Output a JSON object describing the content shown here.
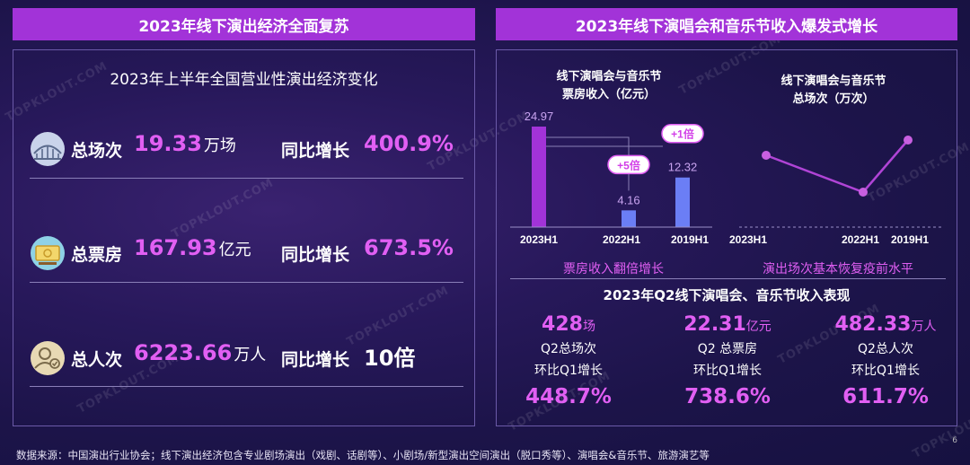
{
  "left_banner": "2023年线下演出经济全面复苏",
  "right_banner": "2023年线下演唱会和音乐节收入爆发式增长",
  "left_panel": {
    "subtitle": "2023年上半年全国营业性演出经济变化",
    "stats": [
      {
        "icon": "venue-icon",
        "label": "总场次",
        "value": "19.33",
        "unit": "万场",
        "yoy_label": "同比增长",
        "yoy_value": "400.9%"
      },
      {
        "icon": "money-icon",
        "label": "总票房",
        "value": "167.93",
        "unit": "亿元",
        "yoy_label": "同比增长",
        "yoy_value": "673.5%"
      },
      {
        "icon": "audience-icon",
        "label": "总人次",
        "value": "6223.66",
        "unit": "万人",
        "yoy_label": "同比增长",
        "yoy_value": "10倍"
      }
    ]
  },
  "right_panel": {
    "box_office_chart": {
      "title_line1": "线下演唱会与音乐节",
      "title_line2": "票房收入（亿元）",
      "caption": "票房收入翻倍增长",
      "badge_2022": "+5倍",
      "badge_2019": "+1倍"
    },
    "shows_chart": {
      "title_line1": "线下演唱会与音乐节",
      "title_line2": "总场次（万次）",
      "caption": "演出场次基本恢复疫前水平"
    },
    "q2_title": "2023年Q2线下演唱会、音乐节收入表现",
    "q2_cols": [
      {
        "value": "428",
        "unit": "场",
        "label": "Q2总场次",
        "growth_label": "环比Q1增长",
        "growth": "448.7%"
      },
      {
        "value": "22.31",
        "unit": "亿元",
        "label": "Q2 总票房",
        "growth_label": "环比Q1增长",
        "growth": "738.6%"
      },
      {
        "value": "482.33",
        "unit": "万人",
        "label": "Q2总人次",
        "growth_label": "环比Q1增长",
        "growth": "611.7%"
      }
    ]
  },
  "watermark": "TOPKLOUT.COM",
  "footer": "数据来源：中国演出行业协会；线下演出经济包含专业剧场演出（戏剧、话剧等）、小剧场/新型演出空间演出（脱口秀等）、演唱会&音乐节、旅游演艺等",
  "page_number": "6",
  "chart_data": [
    {
      "type": "bar",
      "categories": [
        "2023H1",
        "2022H1",
        "2019H1"
      ],
      "values": [
        24.97,
        4.16,
        12.32
      ],
      "colors": [
        "#a233d8",
        "#6b7ef5",
        "#6b7ef5"
      ]
    },
    {
      "type": "line",
      "categories": [
        "2023H1",
        "2022H1",
        "2019H1"
      ],
      "values": [
        null,
        null,
        null
      ]
    }
  ]
}
